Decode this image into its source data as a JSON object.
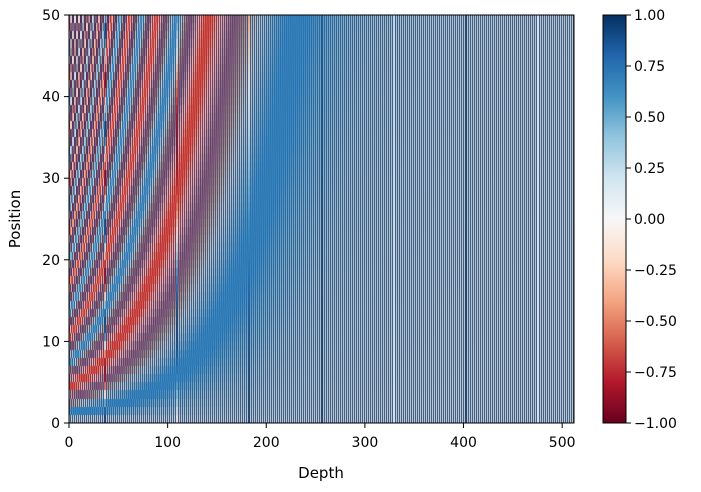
{
  "chart_data": {
    "type": "heatmap",
    "title": "",
    "xlabel": "Depth",
    "ylabel": "Position",
    "xlim": [
      0,
      512
    ],
    "ylim": [
      0,
      50
    ],
    "x_ticks": [
      0,
      100,
      200,
      300,
      400,
      500
    ],
    "x_tick_labels": [
      "0",
      "100",
      "200",
      "300",
      "400",
      "500"
    ],
    "y_ticks": [
      0,
      10,
      20,
      30,
      40,
      50
    ],
    "y_tick_labels": [
      "0",
      "10",
      "20",
      "30",
      "40",
      "50"
    ],
    "value_description": "Sinusoidal positional encoding: sin/cos of position / 10000^(2i/depth), interleaved across 512 depth dimensions for positions 0–49",
    "positions": 50,
    "depth": 512,
    "colormap": "RdBu",
    "vmin": -1.0,
    "vmax": 1.0,
    "colors": {
      "low": "#67001f",
      "mid": "#f7f7f7",
      "high": "#053061"
    },
    "colorbar": {
      "ticks": [
        1.0,
        0.75,
        0.5,
        0.25,
        0.0,
        -0.25,
        -0.5,
        -0.75,
        -1.0
      ],
      "tick_labels": [
        "1.00",
        "0.75",
        "0.50",
        "0.25",
        "0.00",
        "−0.25",
        "−0.50",
        "−0.75",
        "−1.00"
      ]
    }
  }
}
